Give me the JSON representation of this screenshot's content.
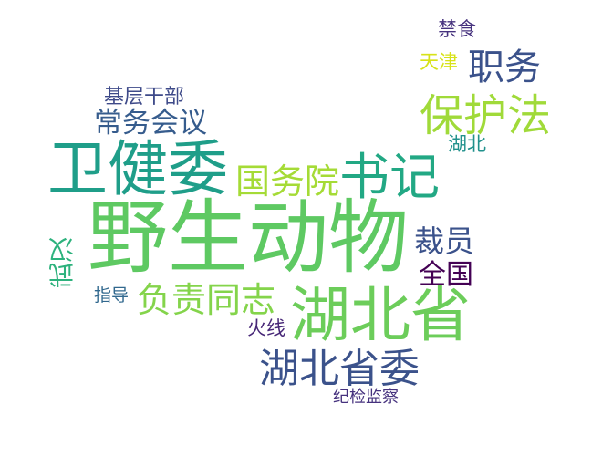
{
  "words": [
    {
      "text": "禁食",
      "color": "#46327e"
    },
    {
      "text": "天津",
      "color": "#d7e219"
    },
    {
      "text": "职务",
      "color": "#3b528b"
    },
    {
      "text": "基层干部",
      "color": "#3e4a89"
    },
    {
      "text": "保护法",
      "color": "#a0da39"
    },
    {
      "text": "常务会议",
      "color": "#365c8d"
    },
    {
      "text": "湖北",
      "color": "#21918c"
    },
    {
      "text": "卫健委",
      "color": "#1f9e89"
    },
    {
      "text": "国务院",
      "color": "#a5db36"
    },
    {
      "text": "书记",
      "color": "#22a884"
    },
    {
      "text": "野生动物",
      "color": "#5ec962"
    },
    {
      "text": "裁员",
      "color": "#3b528b"
    },
    {
      "text": "武汉",
      "color": "#2db27d"
    },
    {
      "text": "全国",
      "color": "#440154"
    },
    {
      "text": "指导",
      "color": "#31688e"
    },
    {
      "text": "负责同志",
      "color": "#84d44b"
    },
    {
      "text": "湖北省",
      "color": "#6ccd5a"
    },
    {
      "text": "火线",
      "color": "#482878"
    },
    {
      "text": "湖北省委",
      "color": "#3b528b"
    },
    {
      "text": "纪检监察",
      "color": "#46327e"
    }
  ]
}
